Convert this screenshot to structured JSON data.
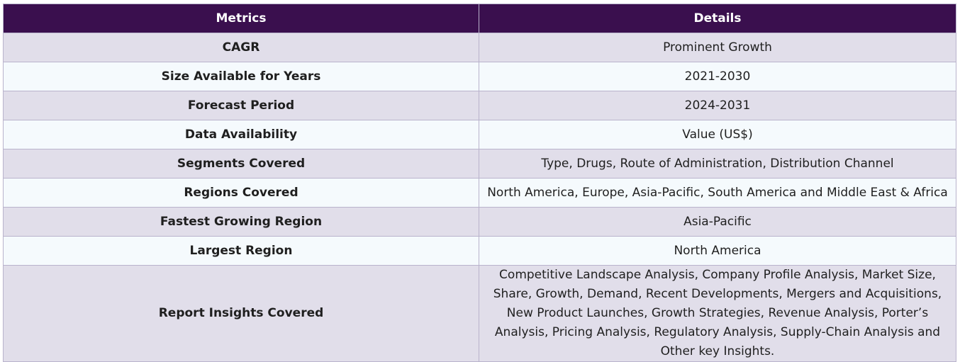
{
  "table": {
    "headers": [
      "Metrics",
      "Details"
    ],
    "rows": [
      {
        "metric": "CAGR",
        "detail": "Prominent Growth"
      },
      {
        "metric": "Size Available for Years",
        "detail": "2021-2030"
      },
      {
        "metric": "Forecast Period",
        "detail": "2024-2031"
      },
      {
        "metric": "Data Availability",
        "detail": "Value (US$)"
      },
      {
        "metric": "Segments Covered",
        "detail": "Type, Drugs, Route of Administration, Distribution Channel"
      },
      {
        "metric": "Regions Covered",
        "detail": "North America, Europe, Asia-Pacific, South America and Middle East & Africa"
      },
      {
        "metric": "Fastest Growing Region",
        "detail": "Asia-Pacific"
      },
      {
        "metric": "Largest Region",
        "detail": "North America"
      },
      {
        "metric": "Report Insights Covered",
        "detail": "Competitive Landscape Analysis, Company Profile Analysis, Market Size, Share, Growth, Demand, Recent Developments, Mergers and Acquisitions, New Product Launches, Growth Strategies, Revenue Analysis, Porter’s Analysis, Pricing Analysis, Regulatory Analysis, Supply-Chain Analysis and Other key Insights."
      }
    ]
  },
  "colors": {
    "header_bg": "#3a0f4e",
    "row_odd_bg": "#e1deea",
    "row_even_bg": "#f5fafd",
    "border": "#b9b3cc"
  }
}
